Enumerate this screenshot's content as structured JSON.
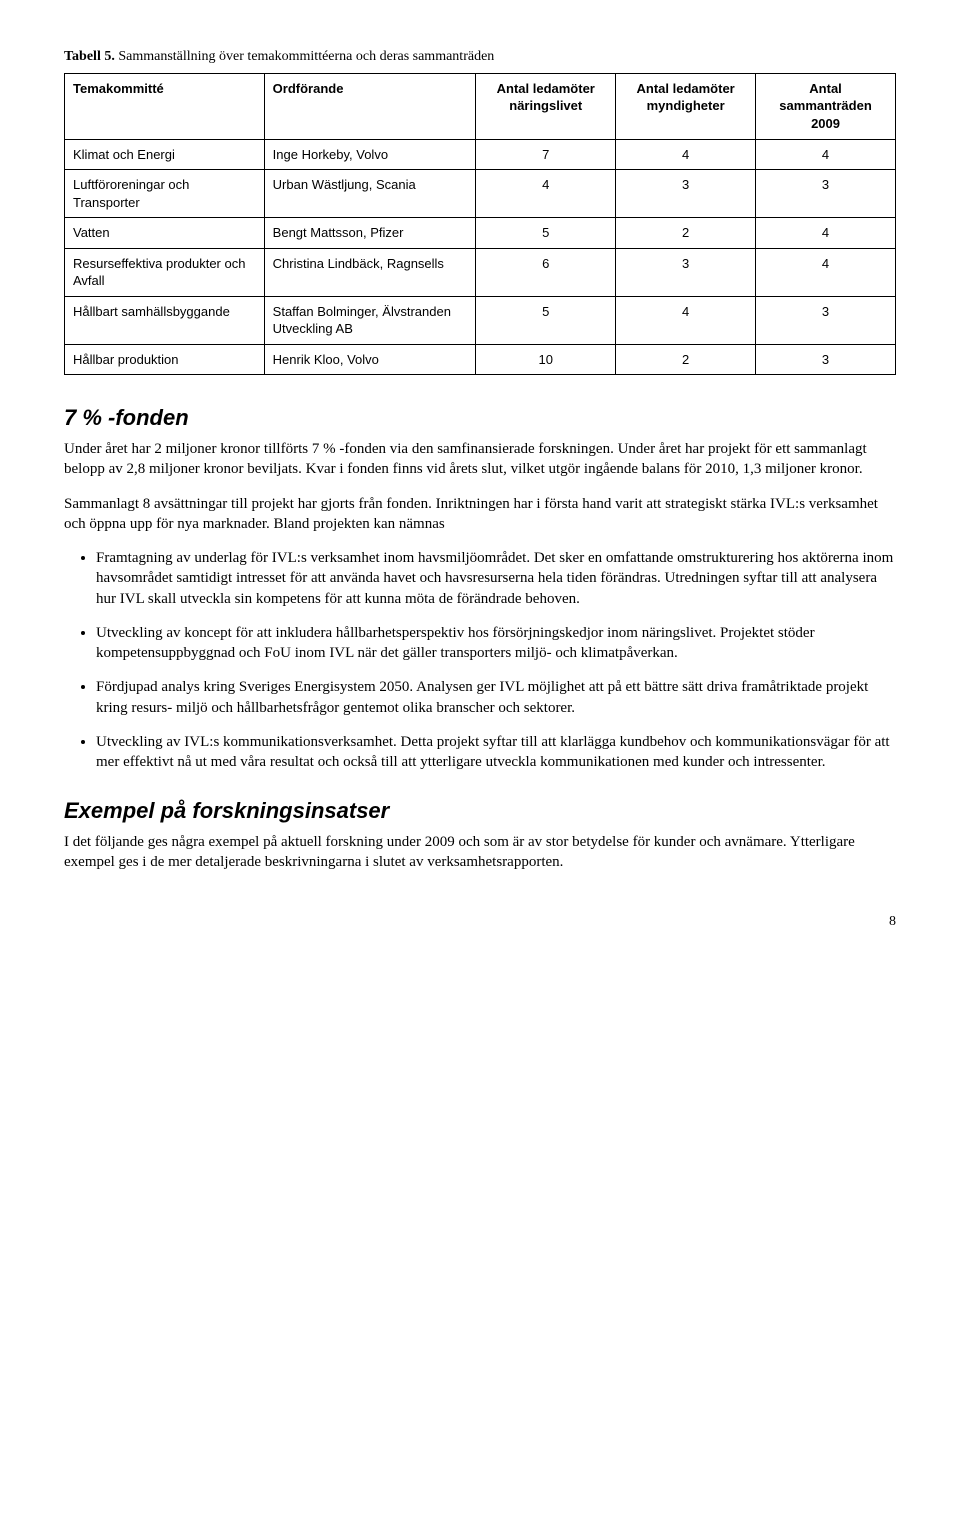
{
  "caption": {
    "label": "Tabell 5.",
    "text": " Sammanställning över temakommittéerna och deras sammanträden"
  },
  "table": {
    "headers": [
      "Temakommitté",
      "Ordförande",
      "Antal ledamöter näringslivet",
      "Antal ledamöter myndigheter",
      "Antal sammanträden 2009"
    ],
    "rows": [
      [
        "Klimat och Energi",
        "Inge Horkeby, Volvo",
        "7",
        "4",
        "4"
      ],
      [
        "Luftföroreningar och Transporter",
        "Urban Wästljung, Scania",
        "4",
        "3",
        "3"
      ],
      [
        "Vatten",
        "Bengt Mattsson, Pfizer",
        "5",
        "2",
        "4"
      ],
      [
        "Resurseffektiva produkter och Avfall",
        "Christina Lindbäck, Ragnsells",
        "6",
        "3",
        "4"
      ],
      [
        "Hållbart samhällsbyggande",
        "Staffan Bolminger, Älvstranden Utveckling AB",
        "5",
        "4",
        "3"
      ],
      [
        "Hållbar produktion",
        "Henrik Kloo, Volvo",
        "10",
        "2",
        "3"
      ]
    ]
  },
  "section1": {
    "heading": "7 % -fonden",
    "p1": "Under året har 2 miljoner kronor tillförts 7 % -fonden via den samfinansierade forskningen. Under året har projekt för ett sammanlagt belopp av 2,8 miljoner kronor beviljats. Kvar i fonden finns vid årets slut, vilket utgör ingående balans för 2010, 1,3 miljoner kronor.",
    "p2": "Sammanlagt 8 avsättningar till projekt har gjorts från fonden. Inriktningen har i första hand varit att strategiskt stärka IVL:s verksamhet och öppna upp för nya marknader. Bland projekten kan nämnas",
    "bullets": [
      "Framtagning av underlag för IVL:s verksamhet inom havsmiljöområdet. Det sker en omfattande omstrukturering hos aktörerna inom havsområdet samtidigt intresset för att använda havet och havsresurserna hela tiden förändras. Utredningen syftar till att analysera hur IVL skall utveckla sin kompetens för att kunna möta de förändrade behoven.",
      "Utveckling av koncept för att inkludera hållbarhetsperspektiv hos försörjningskedjor inom näringslivet. Projektet stöder kompetensuppbyggnad och FoU inom IVL när det gäller transporters miljö- och klimatpåverkan.",
      "Fördjupad analys kring Sveriges Energisystem 2050. Analysen ger IVL möjlighet att på ett bättre sätt driva framåtriktade projekt kring resurs- miljö och hållbarhetsfrågor gentemot olika branscher och sektorer.",
      "Utveckling av IVL:s kommunikationsverksamhet. Detta projekt syftar till att klarlägga kundbehov och kommunikationsvägar för att mer effektivt nå ut med våra resultat och också till att ytterligare utveckla kommunikationen med kunder och intressenter."
    ]
  },
  "section2": {
    "heading": "Exempel på forskningsinsatser",
    "p1": "I det följande ges några exempel på aktuell forskning under 2009 och som är av stor betydelse för kunder och avnämare. Ytterligare exempel ges i de mer detaljerade beskrivningarna i slutet av verksamhetsrapporten."
  },
  "page_number": "8"
}
